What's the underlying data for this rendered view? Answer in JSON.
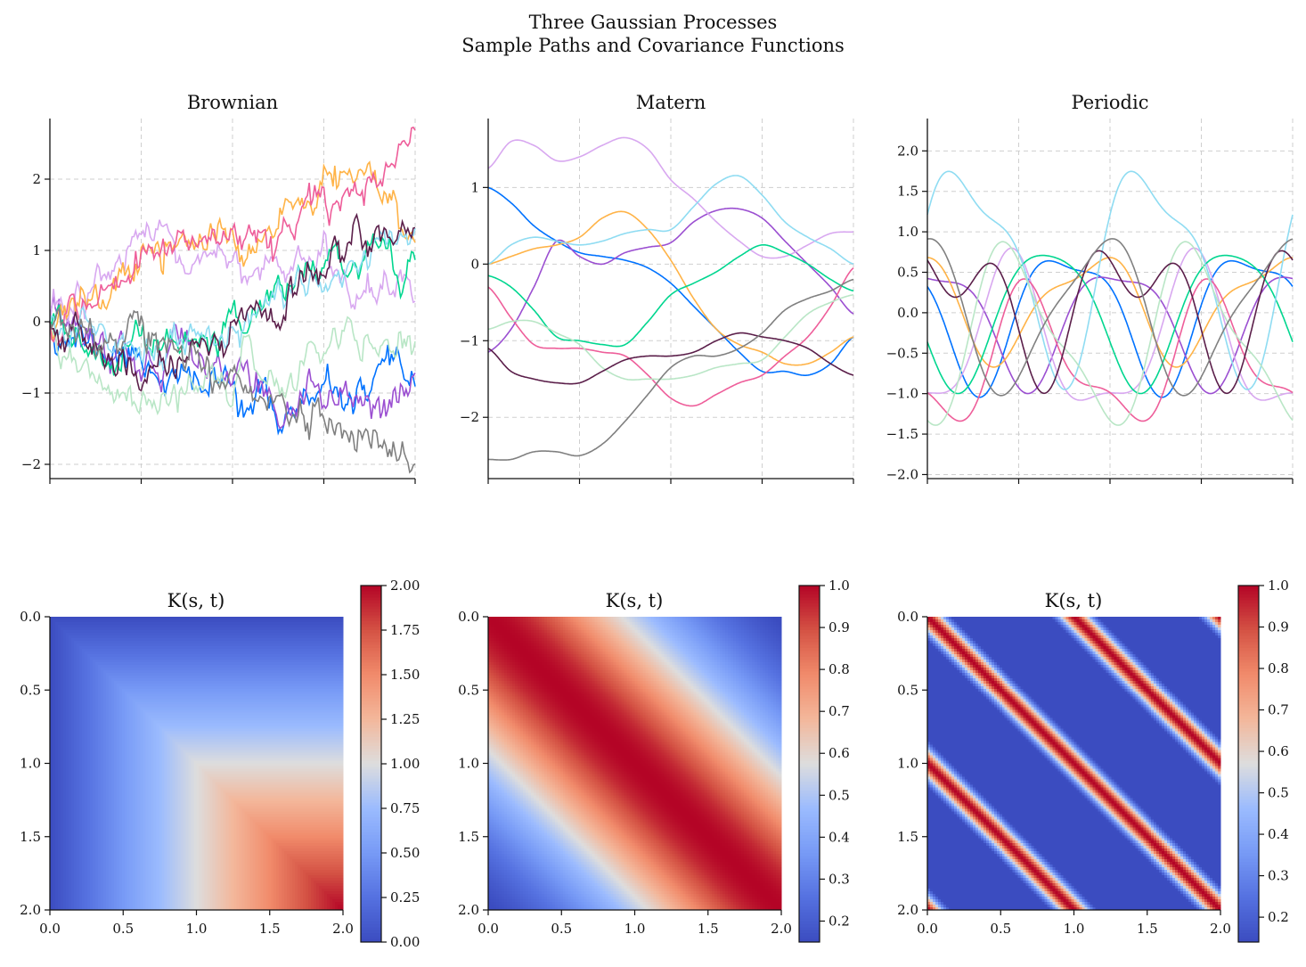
{
  "suptitle": [
    "Three Gaussian Processes",
    "Sample Paths and Covariance Functions"
  ],
  "colors": [
    "#0072ff",
    "#9b4fd1",
    "#d8a8f0",
    "#ffb347",
    "#ee5e9a",
    "#00d68f",
    "#8fdcf2",
    "#b9e6c6",
    "#5b1f4a",
    "#808080"
  ],
  "chart_data": [
    {
      "type": "line",
      "title": "Brownian",
      "xlim": [
        0,
        2
      ],
      "ylim": [
        -2.2,
        2.85
      ],
      "yticks": [
        -2,
        -1,
        0,
        1,
        2
      ],
      "grid": true,
      "series": [
        {
          "color": "#0072ff",
          "seed": 11,
          "x": [
            0,
            0.25,
            0.5,
            0.75,
            1.0,
            1.25,
            1.5,
            1.75,
            2.0
          ],
          "y": [
            0,
            -0.4,
            -0.5,
            -0.9,
            -0.9,
            -1.3,
            -1.1,
            -1.1,
            -0.65
          ]
        },
        {
          "color": "#9b4fd1",
          "seed": 12,
          "x": [
            0,
            0.25,
            0.5,
            0.75,
            1.0,
            1.25,
            1.5,
            1.75,
            2.0
          ],
          "y": [
            0,
            -0.3,
            -0.6,
            -0.4,
            -0.6,
            -1.2,
            -1.0,
            -1.1,
            -1.15
          ]
        },
        {
          "color": "#d8a8f0",
          "seed": 13,
          "x": [
            0,
            0.25,
            0.5,
            0.75,
            1.0,
            1.25,
            1.5,
            1.75,
            2.0
          ],
          "y": [
            0,
            0.5,
            1.1,
            0.8,
            0.9,
            0.6,
            0.8,
            0.4,
            0.6
          ]
        },
        {
          "color": "#ffb347",
          "seed": 14,
          "x": [
            0,
            0.25,
            0.5,
            0.75,
            1.0,
            1.25,
            1.5,
            1.75,
            2.0
          ],
          "y": [
            0,
            0.3,
            0.9,
            1.1,
            1.1,
            1.5,
            1.9,
            2.1,
            1.2
          ]
        },
        {
          "color": "#ee5e9a",
          "seed": 15,
          "x": [
            0,
            0.25,
            0.5,
            0.75,
            1.0,
            1.25,
            1.5,
            1.75,
            2.0
          ],
          "y": [
            0,
            0.2,
            0.9,
            1.1,
            1.2,
            1.3,
            1.8,
            1.8,
            2.6
          ]
        },
        {
          "color": "#00d68f",
          "seed": 16,
          "x": [
            0,
            0.25,
            0.5,
            0.75,
            1.0,
            1.25,
            1.5,
            1.75,
            2.0
          ],
          "y": [
            0,
            -0.4,
            -0.3,
            -0.5,
            -0.1,
            0.5,
            0.8,
            1.3,
            0.75
          ]
        },
        {
          "color": "#8fdcf2",
          "seed": 17,
          "x": [
            0,
            0.25,
            0.5,
            0.75,
            1.0,
            1.25,
            1.5,
            1.75,
            2.0
          ],
          "y": [
            0,
            -0.2,
            -0.4,
            -0.3,
            -0.1,
            0.3,
            0.6,
            0.9,
            1.3
          ]
        },
        {
          "color": "#b9e6c6",
          "seed": 18,
          "x": [
            0,
            0.25,
            0.5,
            0.75,
            1.0,
            1.25,
            1.5,
            1.75,
            2.0
          ],
          "y": [
            0,
            -0.9,
            -1.3,
            -1.0,
            -0.6,
            -0.9,
            -0.2,
            -0.5,
            -0.2
          ]
        },
        {
          "color": "#5b1f4a",
          "seed": 19,
          "x": [
            0,
            0.25,
            0.5,
            0.75,
            1.0,
            1.25,
            1.5,
            1.75,
            2.0
          ],
          "y": [
            0,
            -0.3,
            -0.8,
            -0.5,
            -0.2,
            0.1,
            0.6,
            1.2,
            1.3
          ]
        },
        {
          "color": "#808080",
          "seed": 20,
          "x": [
            0,
            0.25,
            0.5,
            0.75,
            1.0,
            1.25,
            1.5,
            1.75,
            2.0
          ],
          "y": [
            0,
            -0.2,
            -0.2,
            -0.3,
            -0.9,
            -1.2,
            -1.4,
            -1.7,
            -1.85
          ]
        }
      ]
    },
    {
      "type": "line",
      "title": "Matern",
      "xlim": [
        0,
        2
      ],
      "ylim": [
        -2.8,
        1.9
      ],
      "yticks": [
        -2,
        -1,
        0,
        1
      ],
      "grid": true,
      "series": [
        {
          "color": "#0072ff",
          "x": [
            0,
            0.125,
            0.25,
            0.375,
            0.5,
            0.625,
            0.75,
            0.875,
            1.0,
            1.125,
            1.25,
            1.375,
            1.5,
            1.625,
            1.75,
            1.875,
            2.0
          ],
          "y": [
            1.0,
            0.8,
            0.5,
            0.3,
            0.15,
            0.1,
            0.05,
            -0.05,
            -0.25,
            -0.55,
            -0.85,
            -1.15,
            -1.4,
            -1.4,
            -1.45,
            -1.3,
            -0.95
          ]
        },
        {
          "color": "#9b4fd1",
          "x": [
            0,
            0.125,
            0.25,
            0.375,
            0.5,
            0.625,
            0.75,
            0.875,
            1.0,
            1.125,
            1.25,
            1.375,
            1.5,
            1.625,
            1.75,
            1.875,
            2.0
          ],
          "y": [
            -1.15,
            -0.85,
            -0.3,
            0.3,
            0.1,
            0.0,
            0.15,
            0.22,
            0.28,
            0.55,
            0.7,
            0.72,
            0.6,
            0.3,
            0.0,
            -0.3,
            -0.65
          ]
        },
        {
          "color": "#d8a8f0",
          "x": [
            0,
            0.125,
            0.25,
            0.375,
            0.5,
            0.625,
            0.75,
            0.875,
            1.0,
            1.125,
            1.25,
            1.375,
            1.5,
            1.625,
            1.75,
            1.875,
            2.0
          ],
          "y": [
            1.25,
            1.6,
            1.55,
            1.35,
            1.4,
            1.55,
            1.65,
            1.5,
            1.1,
            0.85,
            0.55,
            0.3,
            0.1,
            0.1,
            0.25,
            0.4,
            0.42
          ]
        },
        {
          "color": "#ffb347",
          "x": [
            0,
            0.125,
            0.25,
            0.375,
            0.5,
            0.625,
            0.75,
            0.875,
            1.0,
            1.125,
            1.25,
            1.375,
            1.5,
            1.625,
            1.75,
            1.875,
            2.0
          ],
          "y": [
            0.0,
            0.1,
            0.2,
            0.25,
            0.35,
            0.6,
            0.68,
            0.45,
            0.05,
            -0.45,
            -0.85,
            -1.05,
            -1.15,
            -1.3,
            -1.3,
            -1.15,
            -0.95
          ]
        },
        {
          "color": "#ee5e9a",
          "x": [
            0,
            0.125,
            0.25,
            0.375,
            0.5,
            0.625,
            0.75,
            0.875,
            1.0,
            1.125,
            1.25,
            1.375,
            1.5,
            1.625,
            1.75,
            1.875,
            2.0
          ],
          "y": [
            -0.3,
            -0.7,
            -1.05,
            -1.1,
            -1.1,
            -1.15,
            -1.2,
            -1.45,
            -1.75,
            -1.85,
            -1.7,
            -1.55,
            -1.45,
            -1.2,
            -0.95,
            -0.55,
            -0.05
          ]
        },
        {
          "color": "#00d68f",
          "x": [
            0,
            0.125,
            0.25,
            0.375,
            0.5,
            0.625,
            0.75,
            0.875,
            1.0,
            1.125,
            1.25,
            1.375,
            1.5,
            1.625,
            1.75,
            1.875,
            2.0
          ],
          "y": [
            -0.15,
            -0.3,
            -0.6,
            -0.95,
            -1.0,
            -1.05,
            -1.05,
            -0.75,
            -0.4,
            -0.25,
            -0.1,
            0.1,
            0.25,
            0.15,
            0.0,
            -0.2,
            -0.35
          ]
        },
        {
          "color": "#8fdcf2",
          "x": [
            0,
            0.125,
            0.25,
            0.375,
            0.5,
            0.625,
            0.75,
            0.875,
            1.0,
            1.125,
            1.25,
            1.375,
            1.5,
            1.625,
            1.75,
            1.875,
            2.0
          ],
          "y": [
            0.0,
            0.25,
            0.35,
            0.3,
            0.25,
            0.3,
            0.4,
            0.45,
            0.45,
            0.75,
            1.05,
            1.15,
            0.9,
            0.55,
            0.35,
            0.2,
            0.0
          ]
        },
        {
          "color": "#b9e6c6",
          "x": [
            0,
            0.125,
            0.25,
            0.375,
            0.5,
            0.625,
            0.75,
            0.875,
            1.0,
            1.125,
            1.25,
            1.375,
            1.5,
            1.625,
            1.75,
            1.875,
            2.0
          ],
          "y": [
            -0.85,
            -0.75,
            -0.75,
            -0.9,
            -1.05,
            -1.35,
            -1.5,
            -1.5,
            -1.5,
            -1.45,
            -1.35,
            -1.3,
            -1.25,
            -0.95,
            -0.65,
            -0.5,
            -0.4
          ]
        },
        {
          "color": "#5b1f4a",
          "x": [
            0,
            0.125,
            0.25,
            0.375,
            0.5,
            0.625,
            0.75,
            0.875,
            1.0,
            1.125,
            1.25,
            1.375,
            1.5,
            1.625,
            1.75,
            1.875,
            2.0
          ],
          "y": [
            -1.1,
            -1.4,
            -1.5,
            -1.55,
            -1.55,
            -1.4,
            -1.25,
            -1.2,
            -1.2,
            -1.15,
            -1.0,
            -0.9,
            -0.95,
            -1.0,
            -1.1,
            -1.3,
            -1.45
          ]
        },
        {
          "color": "#808080",
          "x": [
            0,
            0.125,
            0.25,
            0.375,
            0.5,
            0.625,
            0.75,
            0.875,
            1.0,
            1.125,
            1.25,
            1.375,
            1.5,
            1.625,
            1.75,
            1.875,
            2.0
          ],
          "y": [
            -2.55,
            -2.55,
            -2.45,
            -2.45,
            -2.5,
            -2.35,
            -2.05,
            -1.7,
            -1.35,
            -1.2,
            -1.2,
            -1.1,
            -0.9,
            -0.6,
            -0.45,
            -0.35,
            -0.2
          ]
        }
      ]
    },
    {
      "type": "line",
      "title": "Periodic",
      "xlim": [
        0,
        2
      ],
      "ylim": [
        -2.05,
        2.4
      ],
      "yticks": [
        -2.0,
        -1.5,
        -1.0,
        -0.5,
        0.0,
        0.5,
        1.0,
        1.5,
        2.0
      ],
      "period": 1.0,
      "grid": true,
      "series": [
        {
          "color": "#0072ff",
          "a1": 0.8,
          "p1": 3.0,
          "a2": 0.25,
          "p2": 1.0,
          "c": 0.0
        },
        {
          "color": "#9b4fd1",
          "a1": 0.7,
          "p1": 1.3,
          "a2": 0.2,
          "p2": 4.0,
          "c": -0.1
        },
        {
          "color": "#d8a8f0",
          "a1": 0.9,
          "p1": 5.0,
          "a2": 0.3,
          "p2": 2.0,
          "c": -0.4
        },
        {
          "color": "#ffb347",
          "a1": 0.6,
          "p1": 2.2,
          "a2": 0.2,
          "p2": 0.5,
          "c": 0.1
        },
        {
          "color": "#ee5e9a",
          "a1": 0.75,
          "p1": 4.3,
          "a2": 0.3,
          "p2": 1.5,
          "c": -0.6
        },
        {
          "color": "#00d68f",
          "a1": 0.85,
          "p1": 3.7,
          "a2": 0.15,
          "p2": 2.5,
          "c": 0.0
        },
        {
          "color": "#8fdcf2",
          "a1": 1.2,
          "p1": 0.2,
          "a2": 0.4,
          "p2": 1.2,
          "c": 0.6
        },
        {
          "color": "#b9e6c6",
          "a1": 1.0,
          "p1": 4.9,
          "a2": 0.3,
          "p2": 3.3,
          "c": -0.3
        },
        {
          "color": "#5b1f4a",
          "a1": 0.6,
          "p1": 0.8,
          "a2": 0.5,
          "p2": 2.9,
          "c": 0.1
        },
        {
          "color": "#808080",
          "a1": 0.9,
          "p1": 1.9,
          "a2": 0.2,
          "p2": 0.3,
          "c": 0.0
        }
      ]
    },
    {
      "type": "heatmap",
      "title": "K(s, t)",
      "kernel": "brownian",
      "extent": [
        0,
        2
      ],
      "ticks": [
        "0.0",
        "0.5",
        "1.0",
        "1.5",
        "2.0"
      ],
      "colorbar": {
        "vmin": 0.0,
        "vmax": 2.0,
        "ticks": [
          "0.00",
          "0.25",
          "0.50",
          "0.75",
          "1.00",
          "1.25",
          "1.50",
          "1.75",
          "2.00"
        ]
      }
    },
    {
      "type": "heatmap",
      "title": "K(s, t)",
      "kernel": "matern",
      "lengthscale": 1.0,
      "extent": [
        0,
        2
      ],
      "ticks": [
        "0.0",
        "0.5",
        "1.0",
        "1.5",
        "2.0"
      ],
      "colorbar": {
        "vmin": 0.15,
        "vmax": 1.0,
        "ticks": [
          "0.2",
          "0.3",
          "0.4",
          "0.5",
          "0.6",
          "0.7",
          "0.8",
          "0.9",
          "1.0"
        ]
      }
    },
    {
      "type": "heatmap",
      "title": "K(s, t)",
      "kernel": "periodic",
      "period": 1.0,
      "lengthscale": 0.5,
      "extent": [
        0,
        2
      ],
      "ticks": [
        "0.0",
        "0.5",
        "1.0",
        "1.5",
        "2.0"
      ],
      "colorbar": {
        "vmin": 0.14,
        "vmax": 1.0,
        "ticks": [
          "0.2",
          "0.3",
          "0.4",
          "0.5",
          "0.6",
          "0.7",
          "0.8",
          "0.9",
          "1.0"
        ]
      }
    }
  ]
}
